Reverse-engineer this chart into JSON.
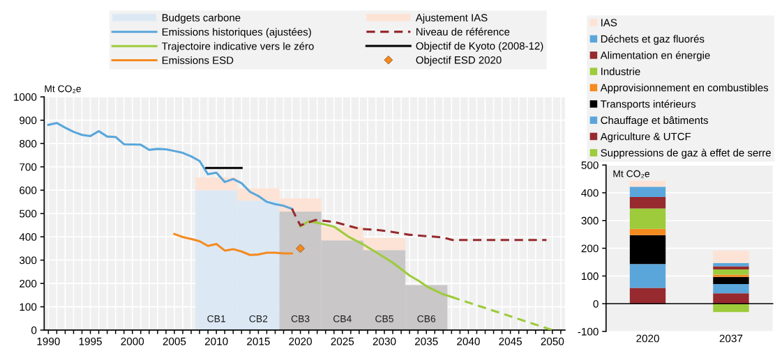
{
  "chart_data": [
    {
      "type": "line",
      "ylabel": "Mt CO₂e",
      "xlim": [
        1989.5,
        2051.5
      ],
      "ylim": [
        0,
        1000
      ],
      "yticks": [
        0,
        100,
        200,
        300,
        400,
        500,
        600,
        700,
        800,
        900,
        1000
      ],
      "xticks": [
        1990,
        {
          "value": 1991,
          "label": null
        },
        {
          "value": 1992,
          "label": null
        },
        {
          "value": 1993,
          "label": null
        },
        {
          "value": 1994,
          "label": null
        },
        1995,
        {
          "value": 1996,
          "label": null
        },
        {
          "value": 1997,
          "label": null
        },
        {
          "value": 1998,
          "label": null
        },
        {
          "value": 1999,
          "label": null
        },
        2000,
        {
          "value": 2001,
          "label": null
        },
        {
          "value": 2002,
          "label": null
        },
        {
          "value": 2003,
          "label": null
        },
        {
          "value": 2004,
          "label": null
        },
        2005,
        {
          "value": 2006,
          "label": null
        },
        {
          "value": 2007,
          "label": null
        },
        {
          "value": 2008,
          "label": null
        },
        {
          "value": 2009,
          "label": null
        },
        2010,
        {
          "value": 2011,
          "label": null
        },
        {
          "value": 2012,
          "label": null
        },
        {
          "value": 2013,
          "label": null
        },
        {
          "value": 2014,
          "label": null
        },
        2015,
        {
          "value": 2016,
          "label": null
        },
        {
          "value": 2017,
          "label": null
        },
        {
          "value": 2018,
          "label": null
        },
        {
          "value": 2019,
          "label": null
        },
        2020,
        {
          "value": 2021,
          "label": null
        },
        {
          "value": 2022,
          "label": null
        },
        {
          "value": 2023,
          "label": null
        },
        {
          "value": 2024,
          "label": null
        },
        2025,
        {
          "value": 2026,
          "label": null
        },
        {
          "value": 2027,
          "label": null
        },
        {
          "value": 2028,
          "label": null
        },
        {
          "value": 2029,
          "label": null
        },
        2030,
        {
          "value": 2031,
          "label": null
        },
        {
          "value": 2032,
          "label": null
        },
        {
          "value": 2033,
          "label": null
        },
        {
          "value": 2034,
          "label": null
        },
        2035,
        {
          "value": 2036,
          "label": null
        },
        {
          "value": 2037,
          "label": null
        },
        {
          "value": 2038,
          "label": null
        },
        {
          "value": 2039,
          "label": null
        },
        2040,
        {
          "value": 2041,
          "label": null
        },
        {
          "value": 2042,
          "label": null
        },
        {
          "value": 2043,
          "label": null
        },
        {
          "value": 2044,
          "label": null
        },
        2045,
        {
          "value": 2046,
          "label": null
        },
        {
          "value": 2047,
          "label": null
        },
        {
          "value": 2048,
          "label": null
        },
        {
          "value": 2049,
          "label": null
        },
        2050,
        {
          "value": 2051,
          "label": null
        }
      ],
      "grid": true,
      "legend": "top",
      "stacked": true,
      "annotations": [
        "CB1",
        "CB2",
        "CB3",
        "CB4",
        "CB5",
        "CB6"
      ],
      "series": [
        {
          "name": "Budgets carbone",
          "type": "bar",
          "color": "#dce9f5",
          "colors": [
            "#dce9f5",
            "#dce9f5",
            "#c9c7c8",
            "#c9c7c8",
            "#c9c7c8",
            "#c9c7c8"
          ],
          "x": [
            2010,
            2015,
            2020,
            2025,
            2030,
            2035
          ],
          "values": [
            600,
            555,
            508,
            385,
            343,
            193
          ]
        },
        {
          "name": "Emissions historiques (ajustées)",
          "type": "line",
          "color": "#5aa6db",
          "x": [
            1990,
            1991,
            1992,
            1993,
            1994,
            1995,
            1996,
            1997,
            1998,
            1999,
            2000,
            2001,
            2002,
            2003,
            2004,
            2005,
            2006,
            2007,
            2008,
            2009,
            2010,
            2011,
            2012,
            2013,
            2014,
            2015,
            2016,
            2017,
            2018,
            2019
          ],
          "values": [
            880,
            888,
            868,
            850,
            837,
            832,
            853,
            830,
            828,
            797,
            796,
            795,
            773,
            777,
            775,
            768,
            760,
            745,
            725,
            668,
            675,
            635,
            648,
            630,
            593,
            575,
            550,
            540,
            533,
            520
          ]
        },
        {
          "name": "Trajectoire indicative vers le zéro",
          "type": "line",
          "color": "#9dcb3b",
          "x": [
            2020,
            2021,
            2022.4,
            2024,
            2025.7,
            2027.4,
            2029,
            2031,
            2033,
            2034.1,
            2035.2,
            2036.9,
            2038
          ],
          "values": [
            444,
            467,
            457,
            444,
            401,
            369,
            334,
            289,
            234,
            211,
            184,
            155,
            142
          ]
        },
        {
          "name": "Emissions ESD",
          "type": "line",
          "color": "#f58a1f",
          "x": [
            2005,
            2006,
            2007,
            2008,
            2009,
            2010,
            2011,
            2012,
            2013,
            2014,
            2015,
            2016,
            2017,
            2018,
            2019
          ],
          "values": [
            412,
            399,
            391,
            381,
            361,
            369,
            341,
            347,
            337,
            322,
            324,
            332,
            332,
            329,
            329
          ]
        },
        {
          "name": "Ajustement IAS",
          "type": "bar",
          "color": "#fce3d5",
          "x": [
            2010,
            2015,
            2020,
            2025,
            2030
          ],
          "values": [
            55,
            53,
            57,
            58,
            52
          ]
        },
        {
          "name": "Niveau de référence",
          "type": "line",
          "color": "#962a2e",
          "line_style": "dashed",
          "x": [
            2019,
            2019.5,
            2020,
            2021.8,
            2024,
            2027.1,
            2029.3,
            2030.7,
            2032.9,
            2035.7,
            2037,
            2038.1,
            2049.3
          ],
          "values": [
            520,
            483,
            449,
            472,
            464,
            434,
            429,
            422,
            409,
            401,
            397,
            386,
            386
          ]
        },
        {
          "name": "Objectif de Kyoto (2008-12)",
          "type": "line",
          "color": "#000000",
          "x": [
            2008.8,
            2013
          ],
          "values": [
            695,
            695
          ]
        },
        {
          "name": "Objectif ESD 2020",
          "type": "scatter",
          "marker": "diamond",
          "color": "#f58a1f",
          "x": [
            2020
          ],
          "values": [
            350
          ]
        },
        {
          "type": "line",
          "color": "#9dcb3b",
          "line_style": "dashed",
          "x": [
            2038,
            2050
          ],
          "values": [
            142,
            0
          ]
        }
      ]
    },
    {
      "type": "bar",
      "stacked": true,
      "ylabel": "Mt CO₂e",
      "categories": [
        "2020",
        "2037"
      ],
      "ylim": [
        -100,
        500
      ],
      "yticks": [
        -100,
        0,
        100,
        200,
        300,
        400,
        500
      ],
      "grid": "y",
      "legend": "top",
      "series": [
        {
          "name": "Suppressions de gaz à effet de serre",
          "color": "#9dcb3b",
          "values": [
            0,
            -30
          ]
        },
        {
          "name": "Agriculture & UTCF",
          "color": "#962a2e",
          "values": [
            57,
            38
          ]
        },
        {
          "name": "Chauffage et bâtiments",
          "color": "#5aa6db",
          "values": [
            86,
            33
          ]
        },
        {
          "name": "Transports intérieurs",
          "color": "#000000",
          "values": [
            104,
            26
          ]
        },
        {
          "name": "Approvisionnement en combustibles",
          "color": "#f58a1f",
          "values": [
            23,
            8
          ]
        },
        {
          "name": "Industrie",
          "color": "#9dcb3b",
          "values": [
            73,
            19
          ]
        },
        {
          "name": "Alimentation en énergie",
          "color": "#962a2e",
          "values": [
            42,
            11
          ]
        },
        {
          "name": "Déchets et gaz fluorés",
          "color": "#5aa6db",
          "values": [
            37,
            12
          ]
        },
        {
          "name": "IAS",
          "color": "#fce3d5",
          "values": [
            21,
            44
          ]
        }
      ]
    }
  ]
}
